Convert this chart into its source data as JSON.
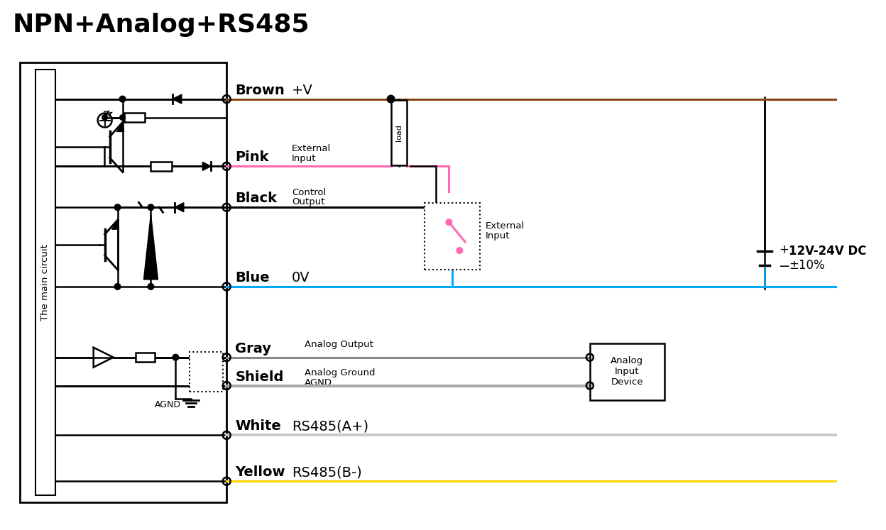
{
  "title": "NPN+Analog+RS485",
  "title_fontsize": 26,
  "bg_color": "#ffffff",
  "wire_colors": {
    "brown": "#8B4513",
    "pink": "#FF69B4",
    "black": "#111111",
    "blue": "#00AAFF",
    "gray": "#888888",
    "shield": "#AAAAAA",
    "white_wire": "#BBBBBB",
    "yellow": "#FFD700"
  },
  "power_label1": "12V-24V DC",
  "power_label2": "±10%"
}
